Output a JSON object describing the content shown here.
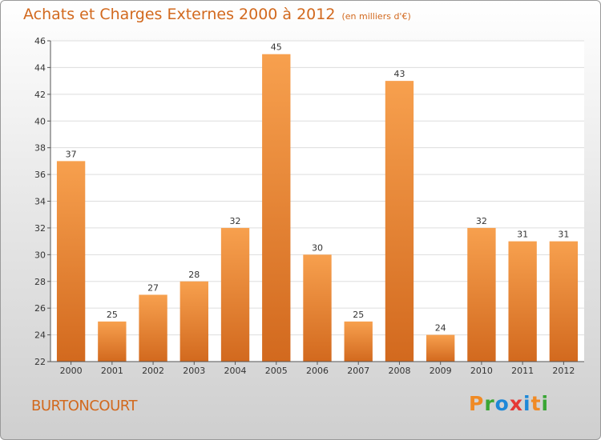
{
  "chart_data": {
    "type": "bar",
    "title": "Achats et Charges Externes 2000 à 2012",
    "subtitle": "(en milliers d'€)",
    "categories": [
      "2000",
      "2001",
      "2002",
      "2003",
      "2004",
      "2005",
      "2006",
      "2007",
      "2008",
      "2009",
      "2010",
      "2011",
      "2012"
    ],
    "values": [
      37,
      25,
      27,
      28,
      32,
      45,
      30,
      25,
      43,
      24,
      32,
      31,
      31
    ],
    "value_labels": [
      "37",
      "25",
      "27",
      "28",
      "32",
      "45",
      "30",
      "25",
      "43",
      "24",
      "32",
      "31",
      "31"
    ],
    "ylim": [
      22,
      46
    ],
    "yticks": [
      22,
      24,
      26,
      28,
      30,
      32,
      34,
      36,
      38,
      40,
      42,
      44,
      46
    ],
    "ytick_labels": [
      "22",
      "24",
      "26",
      "28",
      "30",
      "32",
      "34",
      "36",
      "38",
      "40",
      "42",
      "44",
      "46"
    ],
    "grid": true,
    "bar_color_light": "#f7a04e",
    "bar_color_dark": "#d2691e"
  },
  "footer": {
    "town": "BURTONCOURT",
    "brand": [
      "P",
      "r",
      "o",
      "x",
      "i",
      "t",
      "i"
    ],
    "brand_colors": [
      "#f08a24",
      "#3aa635",
      "#1e88d8",
      "#e53935",
      "#1e88d8",
      "#f08a24",
      "#3aa635"
    ]
  }
}
